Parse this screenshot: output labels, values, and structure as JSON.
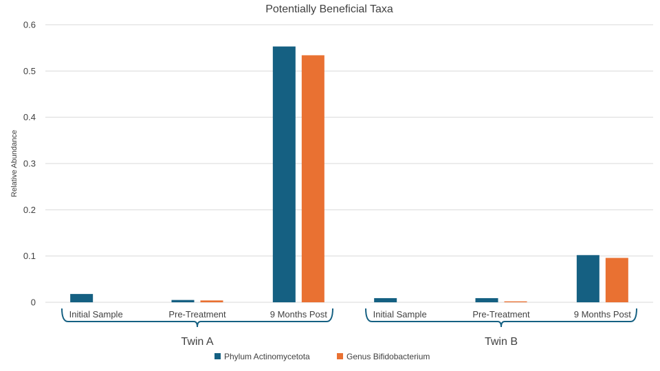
{
  "chart_data": {
    "type": "bar",
    "title": "Potentially Beneficial Taxa",
    "xlabel": "",
    "ylabel": "Relative Abundance",
    "ylim": [
      0,
      0.6
    ],
    "yticks": [
      "0",
      "0.1",
      "0.2",
      "0.3",
      "0.4",
      "0.5",
      "0.6"
    ],
    "grid": true,
    "legend_position": "bottom",
    "groups": [
      {
        "name": "Twin A",
        "categories": [
          "Initial Sample",
          "Pre-Treatment",
          "9 Months Post"
        ]
      },
      {
        "name": "Twin B",
        "categories": [
          "Initial Sample",
          "Pre-Treatment",
          "9 Months Post"
        ]
      }
    ],
    "series": [
      {
        "name": "Phylum Actinomycetota",
        "color": "#156082",
        "values": [
          0.018,
          0.005,
          0.553,
          0.009,
          0.009,
          0.102
        ]
      },
      {
        "name": "Genus Bifidobacterium",
        "color": "#E97132",
        "values": [
          0.0,
          0.004,
          0.534,
          0.0,
          0.002,
          0.096
        ]
      }
    ]
  }
}
